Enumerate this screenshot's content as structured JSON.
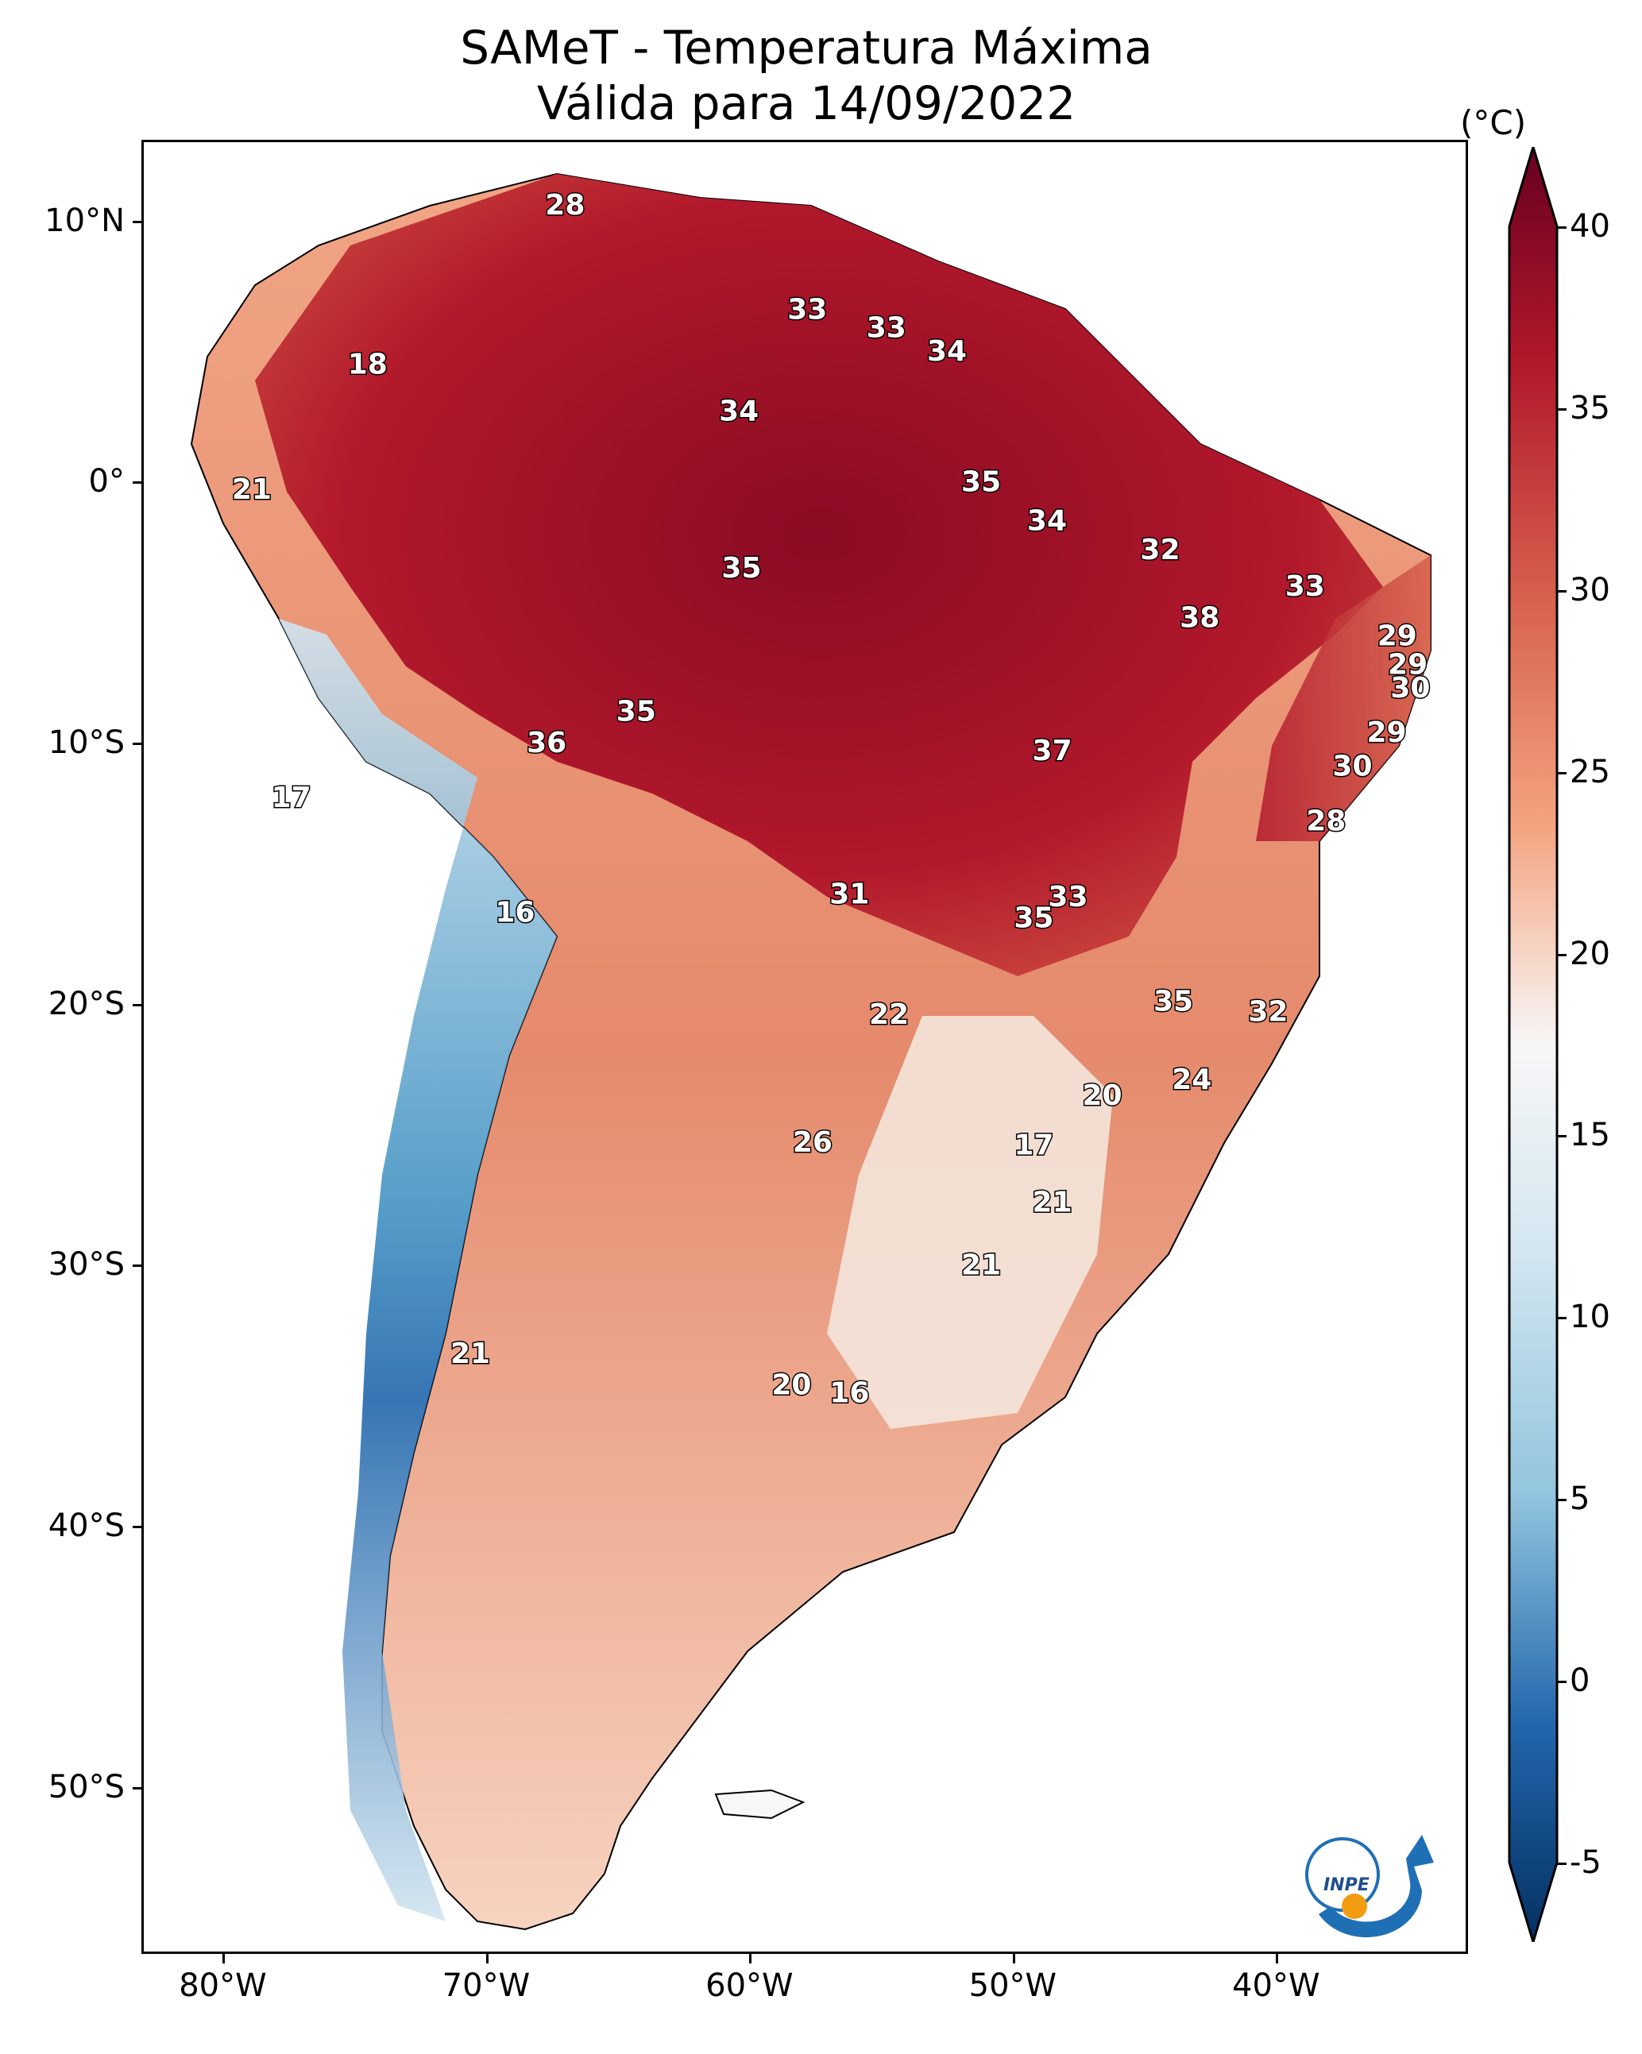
{
  "title": {
    "line1": "SAMeT - Temperatura Máxima",
    "line2": "Válida para 14/09/2022"
  },
  "axes": {
    "lat_labels": [
      "10°N",
      "0°",
      "10°S",
      "20°S",
      "30°S",
      "40°S",
      "50°S"
    ],
    "lon_labels": [
      "80°W",
      "70°W",
      "60°W",
      "50°W",
      "40°W"
    ]
  },
  "colorbar": {
    "unit": "(°C)",
    "tick_labels": [
      "40",
      "35",
      "30",
      "25",
      "20",
      "15",
      "10",
      "5",
      "0",
      "-5"
    ],
    "range": [
      -5,
      40
    ],
    "colors": {
      "high": "#67001f",
      "warm": "#d6604d",
      "neutral": "#f7f7f7",
      "cool": "#92c5de",
      "low": "#053061"
    }
  },
  "logo": {
    "text": "INPE",
    "icon": "inpe-logo-icon"
  },
  "map_values": [
    {
      "label": "28",
      "lon": -67.0,
      "lat": 10.6
    },
    {
      "label": "33",
      "lon": -57.8,
      "lat": 6.6
    },
    {
      "label": "33",
      "lon": -54.8,
      "lat": 5.9
    },
    {
      "label": "34",
      "lon": -52.5,
      "lat": 5.0
    },
    {
      "label": "34",
      "lon": -60.4,
      "lat": 2.7
    },
    {
      "label": "18",
      "lon": -74.5,
      "lat": 4.5
    },
    {
      "label": "21",
      "lon": -78.9,
      "lat": -0.3
    },
    {
      "label": "35",
      "lon": -51.2,
      "lat": 0.0
    },
    {
      "label": "34",
      "lon": -48.7,
      "lat": -1.5
    },
    {
      "label": "32",
      "lon": -44.4,
      "lat": -2.6
    },
    {
      "label": "33",
      "lon": -38.9,
      "lat": -4.0
    },
    {
      "label": "35",
      "lon": -60.3,
      "lat": -3.3
    },
    {
      "label": "38",
      "lon": -42.9,
      "lat": -5.2
    },
    {
      "label": "29",
      "lon": -35.4,
      "lat": -5.9
    },
    {
      "label": "29",
      "lon": -35.0,
      "lat": -7.0
    },
    {
      "label": "30",
      "lon": -34.9,
      "lat": -7.9
    },
    {
      "label": "29",
      "lon": -35.8,
      "lat": -9.6
    },
    {
      "label": "30",
      "lon": -37.1,
      "lat": -10.9
    },
    {
      "label": "35",
      "lon": -64.3,
      "lat": -8.8
    },
    {
      "label": "36",
      "lon": -67.7,
      "lat": -10.0
    },
    {
      "label": "37",
      "lon": -48.5,
      "lat": -10.3
    },
    {
      "label": "28",
      "lon": -38.1,
      "lat": -13.0
    },
    {
      "label": "17",
      "lon": -77.4,
      "lat": -12.1
    },
    {
      "label": "16",
      "lon": -68.9,
      "lat": -16.5
    },
    {
      "label": "31",
      "lon": -56.2,
      "lat": -15.8
    },
    {
      "label": "33",
      "lon": -47.9,
      "lat": -15.9
    },
    {
      "label": "35",
      "lon": -49.2,
      "lat": -16.7
    },
    {
      "label": "22",
      "lon": -54.7,
      "lat": -20.4
    },
    {
      "label": "35",
      "lon": -43.9,
      "lat": -19.9
    },
    {
      "label": "32",
      "lon": -40.3,
      "lat": -20.3
    },
    {
      "label": "24",
      "lon": -43.2,
      "lat": -22.9
    },
    {
      "label": "20",
      "lon": -46.6,
      "lat": -23.5
    },
    {
      "label": "17",
      "lon": -49.2,
      "lat": -25.4
    },
    {
      "label": "26",
      "lon": -57.6,
      "lat": -25.3
    },
    {
      "label": "21",
      "lon": -48.5,
      "lat": -27.6
    },
    {
      "label": "21",
      "lon": -51.2,
      "lat": -30.0
    },
    {
      "label": "21",
      "lon": -70.6,
      "lat": -33.4
    },
    {
      "label": "20",
      "lon": -58.4,
      "lat": -34.6
    },
    {
      "label": "16",
      "lon": -56.2,
      "lat": -34.9
    }
  ]
}
